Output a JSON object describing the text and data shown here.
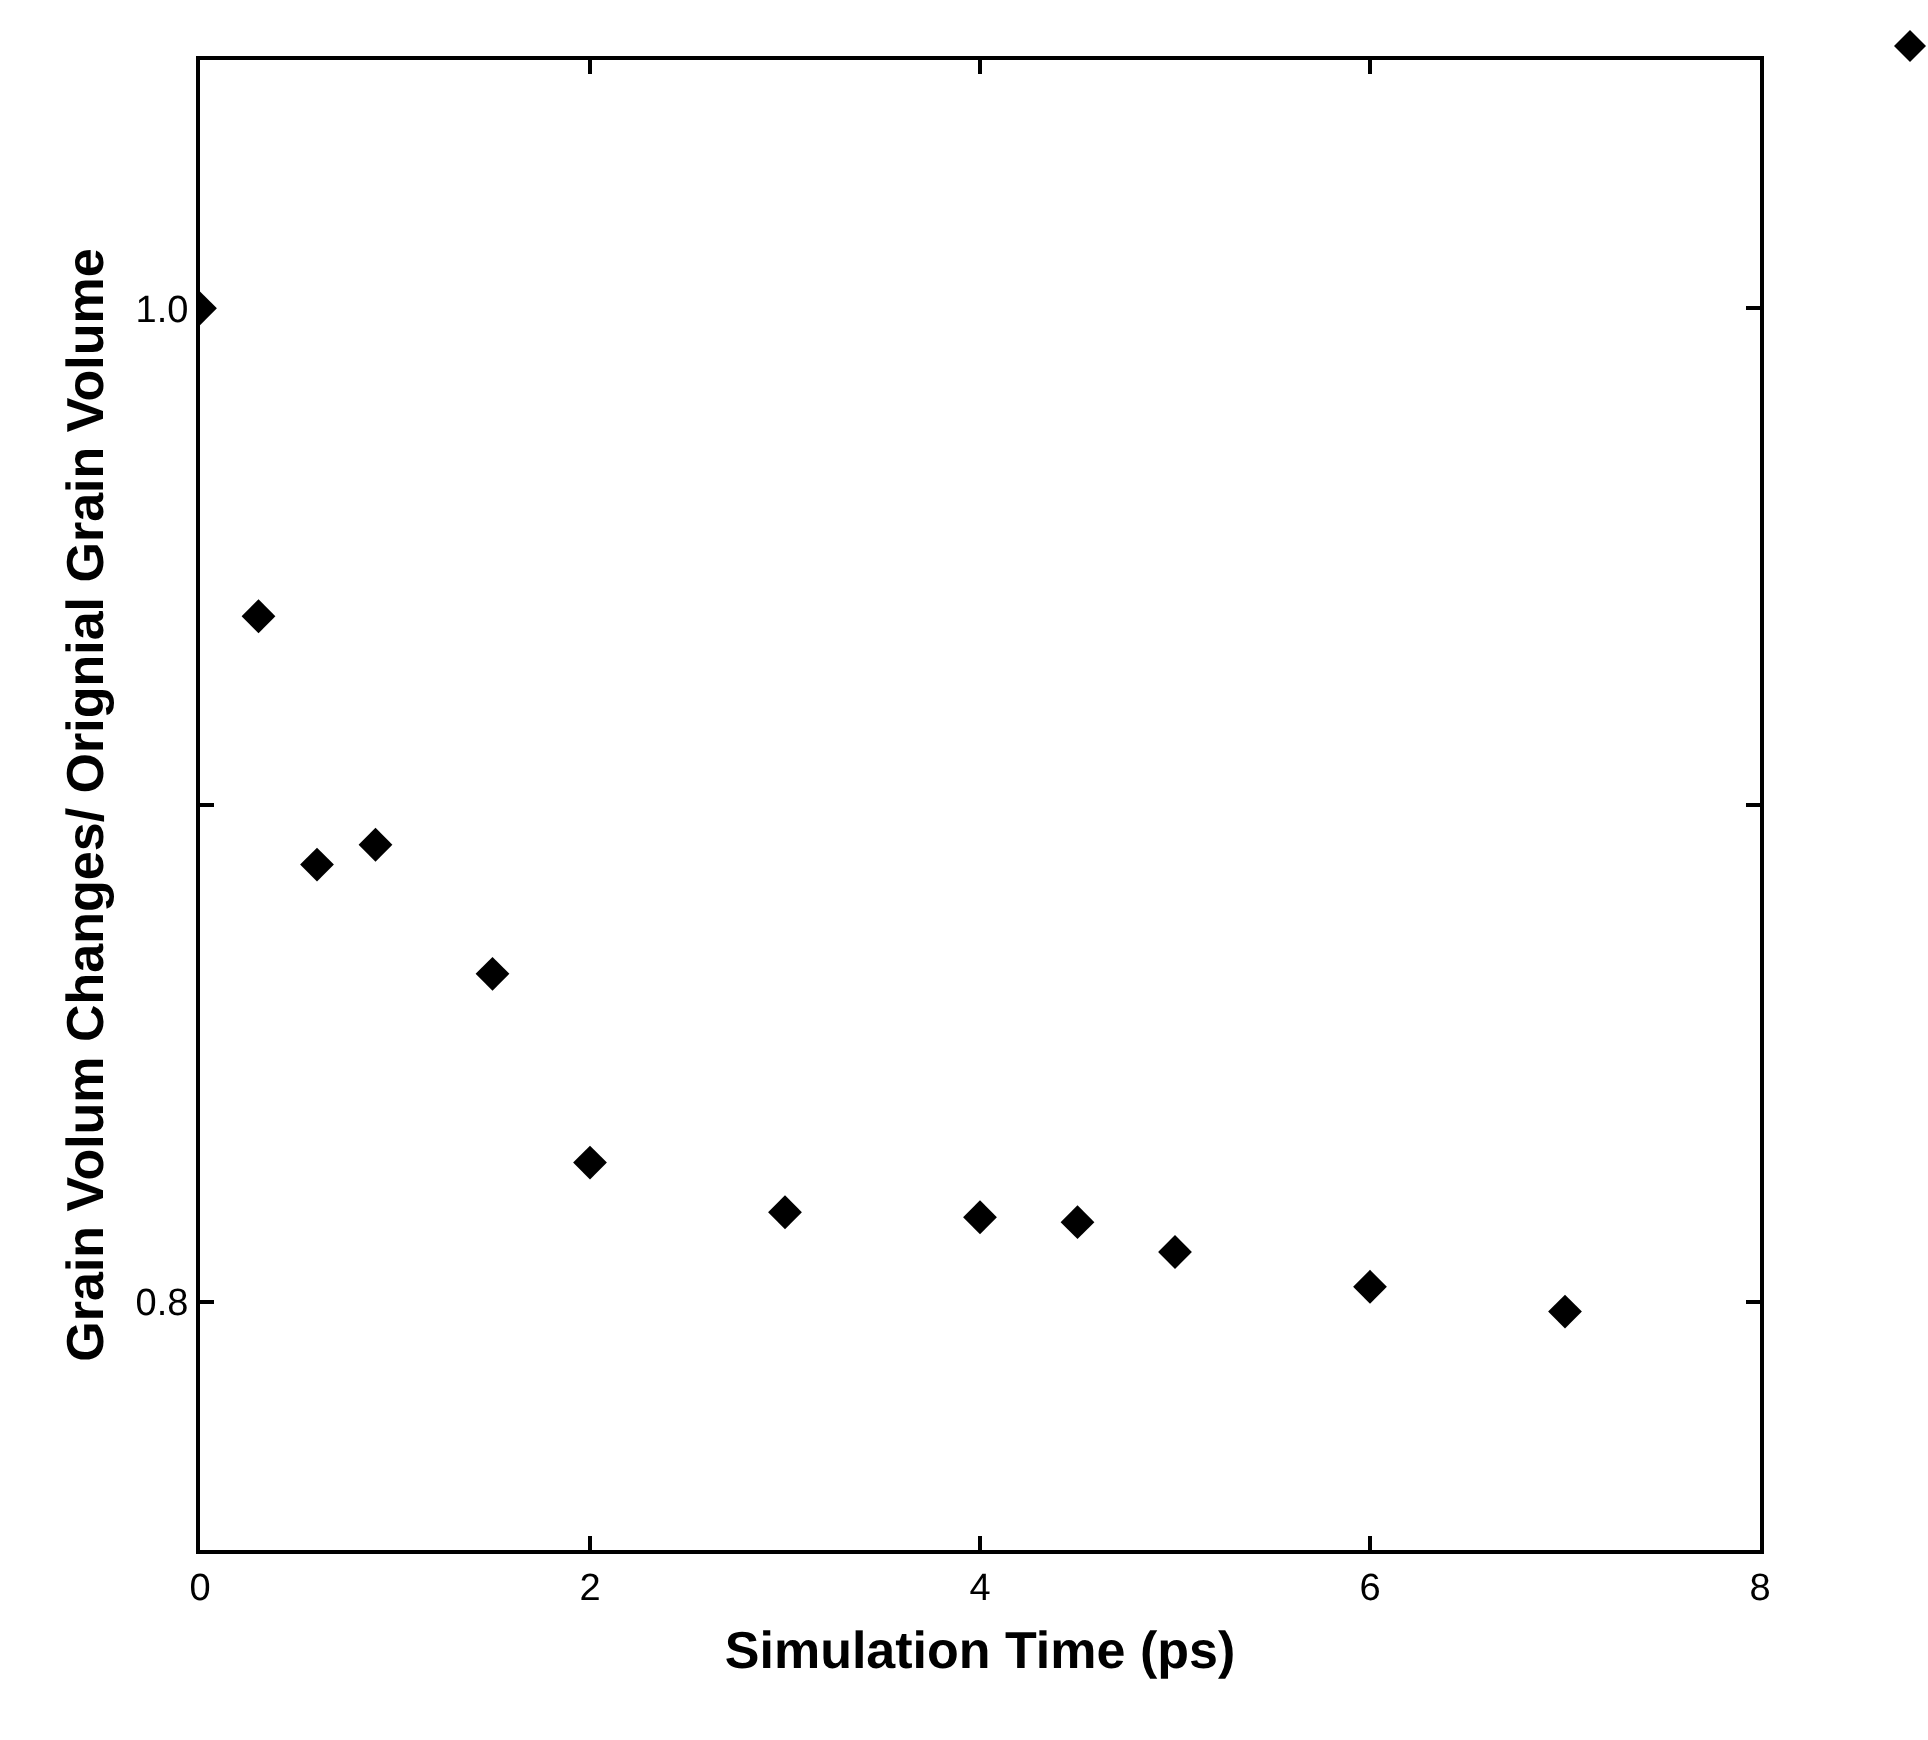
{
  "chart_data": {
    "type": "scatter",
    "xlabel": "Simulation Time (ps)",
    "ylabel": "Grain Volum Changes/ Orignial Grain Volume",
    "x": [
      0,
      0.3,
      0.6,
      0.9,
      1.5,
      2,
      3,
      4,
      4.5,
      5,
      6,
      7
    ],
    "series": [
      {
        "color": "#000000",
        "values": [
          1.0,
          0.938,
          0.888,
          0.892,
          0.866,
          0.828,
          0.818,
          0.817,
          0.816,
          0.81,
          0.803,
          0.798
        ]
      }
    ],
    "xlim": [
      0,
      8
    ],
    "xticks": [
      0,
      2,
      4,
      6,
      8
    ],
    "ylim": [
      0.75,
      1.05
    ],
    "yticks": [
      {
        "value": 0.8,
        "label": "0.8"
      },
      {
        "value": 0.9,
        "label": null
      },
      {
        "value": 1.0,
        "label": "1.0"
      }
    ],
    "marker": "diamond",
    "grid": false
  }
}
